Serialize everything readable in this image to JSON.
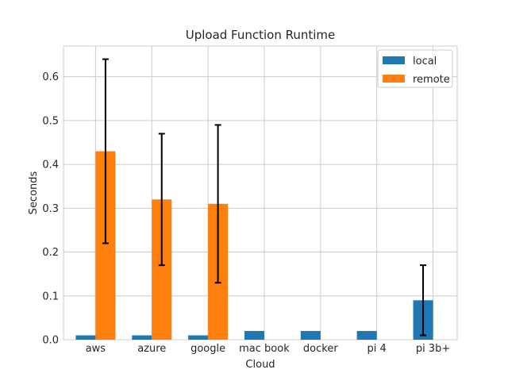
{
  "chart_data": {
    "type": "bar",
    "title": "Upload Function Runtime",
    "xlabel": "Cloud",
    "ylabel": "Seconds",
    "categories": [
      "aws",
      "azure",
      "google",
      "mac book",
      "docker",
      "pi 4",
      "pi 3b+"
    ],
    "ylim": [
      0,
      0.67
    ],
    "yticks": [
      "0.0",
      "0.1",
      "0.2",
      "0.3",
      "0.4",
      "0.5",
      "0.6"
    ],
    "grid": true,
    "legend_position": "top-right",
    "series": [
      {
        "name": "local",
        "color": "#1f77b4",
        "values": [
          0.01,
          0.01,
          0.01,
          0.02,
          0.02,
          0.02,
          0.09
        ],
        "errors": [
          null,
          null,
          null,
          null,
          null,
          null,
          0.08
        ]
      },
      {
        "name": "remote",
        "color": "#ff7f0e",
        "values": [
          0.43,
          0.32,
          0.31,
          null,
          null,
          null,
          null
        ],
        "errors": [
          0.21,
          0.15,
          0.18,
          null,
          null,
          null,
          null
        ]
      }
    ]
  }
}
